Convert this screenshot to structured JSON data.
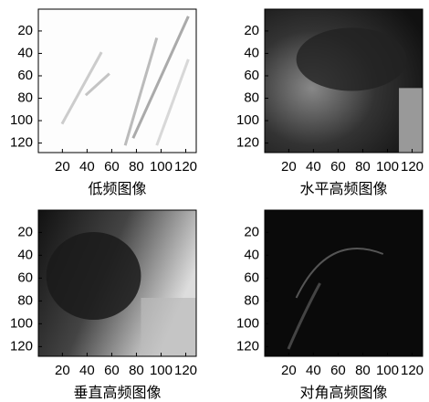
{
  "chart_data": [
    {
      "type": "image",
      "xlabel": "低频图像",
      "xlim": [
        0.5,
        128.5
      ],
      "ylim": [
        128.5,
        0.5
      ],
      "xticks": [
        20,
        40,
        60,
        80,
        100,
        120
      ],
      "yticks": [
        20,
        40,
        60,
        80,
        100,
        120
      ]
    },
    {
      "type": "image",
      "xlabel": "水平高频图像",
      "xlim": [
        0.5,
        128.5
      ],
      "ylim": [
        128.5,
        0.5
      ],
      "xticks": [
        20,
        40,
        60,
        80,
        100,
        120
      ],
      "yticks": [
        20,
        40,
        60,
        80,
        100,
        120
      ]
    },
    {
      "type": "image",
      "xlabel": "垂直高频图像",
      "xlim": [
        0.5,
        128.5
      ],
      "ylim": [
        128.5,
        0.5
      ],
      "xticks": [
        20,
        40,
        60,
        80,
        100,
        120
      ],
      "yticks": [
        20,
        40,
        60,
        80,
        100,
        120
      ]
    },
    {
      "type": "image",
      "xlabel": "对角高频图像",
      "xlim": [
        0.5,
        128.5
      ],
      "ylim": [
        128.5,
        0.5
      ],
      "xticks": [
        20,
        40,
        60,
        80,
        100,
        120
      ],
      "yticks": [
        20,
        40,
        60,
        80,
        100,
        120
      ]
    }
  ]
}
